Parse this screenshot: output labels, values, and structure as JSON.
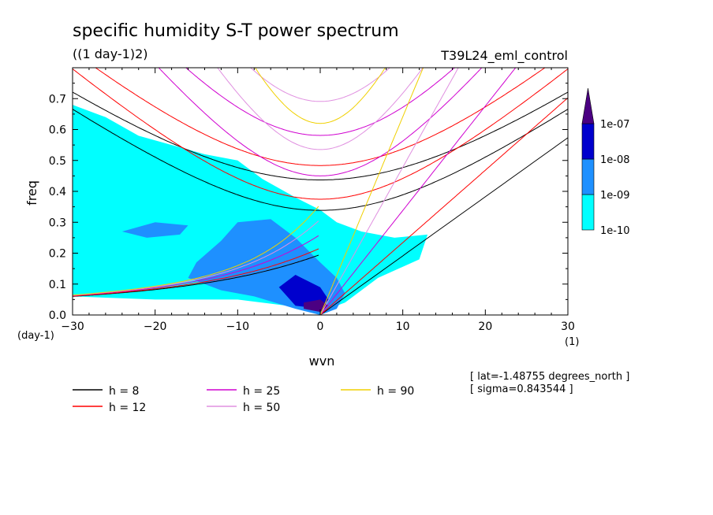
{
  "chart_data": {
    "type": "heatmap",
    "title": "specific humidity S-T power spectrum",
    "subtitle": "((1 day-1)2)",
    "run_label": "T39L24_eml_control",
    "xlabel": "wvn",
    "ylabel": "freq",
    "x_unit_label": "(1)",
    "y_unit_label": "(day-1)",
    "xlim": [
      -30,
      30
    ],
    "ylim": [
      0,
      0.8
    ],
    "x_ticks": [
      -30,
      -20,
      -10,
      0,
      10,
      20,
      30
    ],
    "x_tick_labels": [
      "-30",
      "-20",
      "-10",
      "0",
      "10",
      "20",
      "30"
    ],
    "y_ticks": [
      0.0,
      0.1,
      0.2,
      0.3,
      0.4,
      0.5,
      0.6,
      0.7
    ],
    "y_tick_labels": [
      "0.0",
      "0.1",
      "0.2",
      "0.3",
      "0.4",
      "0.5",
      "0.6",
      "0.7"
    ],
    "colorbar": {
      "levels": [
        "1e-10",
        "1e-09",
        "1e-08",
        "1e-07"
      ],
      "colors": [
        "#00ffff",
        "#1e90ff",
        "#0000cd",
        "#4b0082"
      ]
    },
    "annotations": [
      "[ lat=-1.48755 degrees_north ]",
      "[ sigma=0.843544 ]"
    ],
    "dispersion_curves": [
      {
        "label": "h =  8",
        "h": 8,
        "color": "#000000"
      },
      {
        "label": "h = 12",
        "h": 12,
        "color": "#ff0000"
      },
      {
        "label": "h = 25",
        "h": 25,
        "color": "#d000d0"
      },
      {
        "label": "h = 50",
        "h": 50,
        "color": "#e090e0"
      },
      {
        "label": "h = 90",
        "h": 90,
        "color": "#f0d000"
      }
    ],
    "power_regions": [
      {
        "level": "1e-10",
        "polygon": [
          [
            -30,
            0.06
          ],
          [
            -30,
            0.68
          ],
          [
            -26,
            0.64
          ],
          [
            -22,
            0.58
          ],
          [
            -18,
            0.55
          ],
          [
            -14,
            0.52
          ],
          [
            -10,
            0.5
          ],
          [
            -7,
            0.44
          ],
          [
            -3,
            0.38
          ],
          [
            0,
            0.34
          ],
          [
            2,
            0.3
          ],
          [
            5,
            0.27
          ],
          [
            9,
            0.25
          ],
          [
            13,
            0.26
          ],
          [
            12,
            0.18
          ],
          [
            7,
            0.12
          ],
          [
            3,
            0.04
          ],
          [
            0,
            0.01
          ],
          [
            -4,
            0.03
          ],
          [
            -10,
            0.05
          ],
          [
            -20,
            0.05
          ]
        ]
      },
      {
        "level": "1e-09",
        "polygon": [
          [
            -16,
            0.12
          ],
          [
            -15,
            0.17
          ],
          [
            -12,
            0.24
          ],
          [
            -10,
            0.3
          ],
          [
            -6,
            0.31
          ],
          [
            -3,
            0.25
          ],
          [
            0,
            0.17
          ],
          [
            2,
            0.12
          ],
          [
            3,
            0.07
          ],
          [
            2,
            0.02
          ],
          [
            0,
            0.0
          ],
          [
            -3,
            0.02
          ],
          [
            -8,
            0.06
          ],
          [
            -12,
            0.08
          ]
        ]
      },
      {
        "level": "1e-09",
        "polygon": [
          [
            -24,
            0.27
          ],
          [
            -20,
            0.3
          ],
          [
            -16,
            0.29
          ],
          [
            -17,
            0.26
          ],
          [
            -21,
            0.25
          ]
        ]
      },
      {
        "level": "1e-08",
        "polygon": [
          [
            -5,
            0.09
          ],
          [
            -3,
            0.13
          ],
          [
            0,
            0.09
          ],
          [
            1,
            0.05
          ],
          [
            0,
            0.02
          ],
          [
            -3,
            0.03
          ]
        ]
      },
      {
        "level": "1e-07",
        "polygon": [
          [
            -2,
            0.04
          ],
          [
            0,
            0.05
          ],
          [
            1,
            0.03
          ],
          [
            0,
            0.01
          ],
          [
            -2,
            0.02
          ]
        ]
      }
    ]
  }
}
